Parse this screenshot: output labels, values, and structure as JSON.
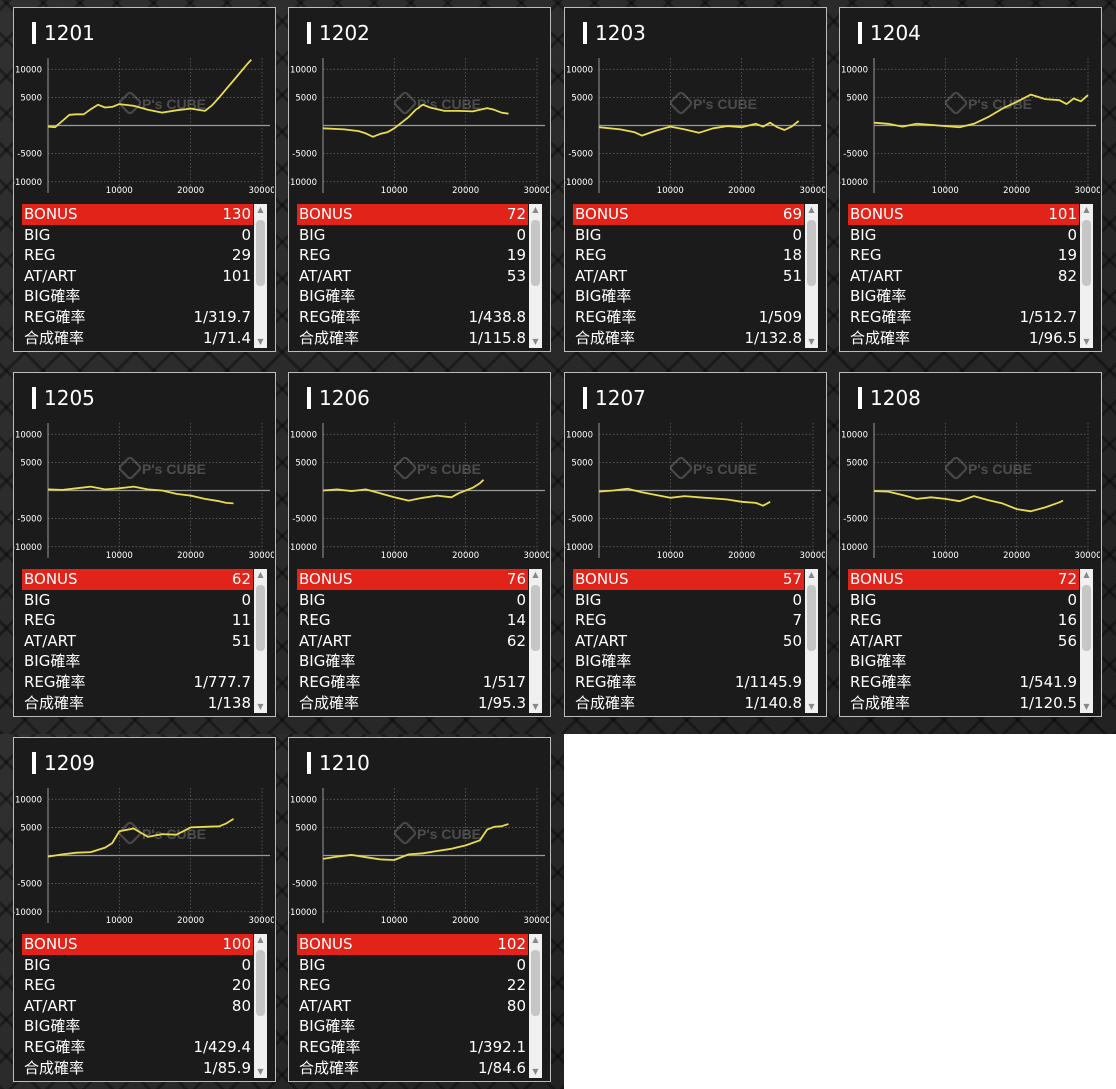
{
  "machines": [
    {
      "id": "1201",
      "bonus": "130",
      "big": "0",
      "reg": "29",
      "at": "101",
      "big_rate": "",
      "reg_rate": "1/319.7",
      "total_rate": "1/71.4",
      "series": [
        [
          0,
          -200
        ],
        [
          1000,
          -300
        ],
        [
          2000,
          800
        ],
        [
          3000,
          1900
        ],
        [
          4000,
          2000
        ],
        [
          5000,
          2000
        ],
        [
          6000,
          2900
        ],
        [
          7000,
          3700
        ],
        [
          8000,
          3200
        ],
        [
          9000,
          3300
        ],
        [
          10000,
          3800
        ],
        [
          12000,
          3500
        ],
        [
          14000,
          2800
        ],
        [
          16000,
          2300
        ],
        [
          18000,
          2700
        ],
        [
          20000,
          3000
        ],
        [
          22000,
          2600
        ],
        [
          23000,
          3600
        ],
        [
          24000,
          5000
        ],
        [
          25000,
          6500
        ],
        [
          26000,
          8000
        ],
        [
          27000,
          9500
        ],
        [
          28000,
          11000
        ],
        [
          28500,
          11700
        ]
      ]
    },
    {
      "id": "1202",
      "bonus": "72",
      "big": "0",
      "reg": "19",
      "at": "53",
      "big_rate": "",
      "reg_rate": "1/438.8",
      "total_rate": "1/115.8",
      "series": [
        [
          0,
          -500
        ],
        [
          3000,
          -700
        ],
        [
          5000,
          -1000
        ],
        [
          6000,
          -1400
        ],
        [
          7000,
          -2000
        ],
        [
          8000,
          -1500
        ],
        [
          9000,
          -1200
        ],
        [
          10000,
          -500
        ],
        [
          11000,
          500
        ],
        [
          12000,
          1500
        ],
        [
          13000,
          2800
        ],
        [
          14000,
          3700
        ],
        [
          15000,
          3200
        ],
        [
          17000,
          2600
        ],
        [
          19000,
          2600
        ],
        [
          21000,
          2500
        ],
        [
          23000,
          3100
        ],
        [
          24000,
          2800
        ],
        [
          25000,
          2300
        ],
        [
          26000,
          2100
        ]
      ]
    },
    {
      "id": "1203",
      "bonus": "69",
      "big": "0",
      "reg": "18",
      "at": "51",
      "big_rate": "",
      "reg_rate": "1/509",
      "total_rate": "1/132.8",
      "series": [
        [
          0,
          -300
        ],
        [
          3000,
          -700
        ],
        [
          5000,
          -1200
        ],
        [
          6000,
          -1800
        ],
        [
          8000,
          -900
        ],
        [
          10000,
          -200
        ],
        [
          12000,
          -700
        ],
        [
          14000,
          -1300
        ],
        [
          16000,
          -500
        ],
        [
          18000,
          -100
        ],
        [
          20000,
          -300
        ],
        [
          22000,
          300
        ],
        [
          23000,
          -200
        ],
        [
          24000,
          500
        ],
        [
          25000,
          -300
        ],
        [
          26000,
          -800
        ],
        [
          27000,
          -200
        ],
        [
          28000,
          800
        ]
      ]
    },
    {
      "id": "1204",
      "bonus": "101",
      "big": "0",
      "reg": "19",
      "at": "82",
      "big_rate": "",
      "reg_rate": "1/512.7",
      "total_rate": "1/96.5",
      "series": [
        [
          0,
          500
        ],
        [
          2000,
          300
        ],
        [
          4000,
          -200
        ],
        [
          6000,
          300
        ],
        [
          8000,
          100
        ],
        [
          10000,
          -100
        ],
        [
          12000,
          -300
        ],
        [
          14000,
          300
        ],
        [
          16000,
          1500
        ],
        [
          18000,
          3000
        ],
        [
          20000,
          4200
        ],
        [
          22000,
          5500
        ],
        [
          24000,
          4700
        ],
        [
          26000,
          4500
        ],
        [
          27000,
          3800
        ],
        [
          28000,
          4800
        ],
        [
          29000,
          4300
        ],
        [
          30000,
          5400
        ]
      ]
    },
    {
      "id": "1205",
      "bonus": "62",
      "big": "0",
      "reg": "11",
      "at": "51",
      "big_rate": "",
      "reg_rate": "1/777.7",
      "total_rate": "1/138",
      "series": [
        [
          0,
          200
        ],
        [
          2000,
          100
        ],
        [
          4000,
          400
        ],
        [
          6000,
          700
        ],
        [
          8000,
          200
        ],
        [
          10000,
          400
        ],
        [
          12000,
          700
        ],
        [
          14000,
          200
        ],
        [
          16000,
          0
        ],
        [
          18000,
          -600
        ],
        [
          20000,
          -900
        ],
        [
          22000,
          -1500
        ],
        [
          24000,
          -1900
        ],
        [
          25000,
          -2200
        ],
        [
          26000,
          -2300
        ]
      ]
    },
    {
      "id": "1206",
      "bonus": "76",
      "big": "0",
      "reg": "14",
      "at": "62",
      "big_rate": "",
      "reg_rate": "1/517",
      "total_rate": "1/95.3",
      "series": [
        [
          0,
          0
        ],
        [
          2000,
          200
        ],
        [
          4000,
          -100
        ],
        [
          6000,
          200
        ],
        [
          8000,
          -500
        ],
        [
          10000,
          -1200
        ],
        [
          12000,
          -1800
        ],
        [
          14000,
          -1300
        ],
        [
          16000,
          -900
        ],
        [
          18000,
          -1200
        ],
        [
          19000,
          -500
        ],
        [
          20000,
          0
        ],
        [
          21000,
          500
        ],
        [
          22000,
          1300
        ],
        [
          22500,
          1900
        ]
      ]
    },
    {
      "id": "1207",
      "bonus": "57",
      "big": "0",
      "reg": "7",
      "at": "50",
      "big_rate": "",
      "reg_rate": "1/1145.9",
      "total_rate": "1/140.8",
      "series": [
        [
          0,
          -200
        ],
        [
          2000,
          0
        ],
        [
          4000,
          300
        ],
        [
          6000,
          -300
        ],
        [
          8000,
          -800
        ],
        [
          10000,
          -1300
        ],
        [
          12000,
          -1000
        ],
        [
          14000,
          -1200
        ],
        [
          16000,
          -1400
        ],
        [
          18000,
          -1600
        ],
        [
          20000,
          -2000
        ],
        [
          22000,
          -2200
        ],
        [
          23000,
          -2700
        ],
        [
          24000,
          -2000
        ]
      ]
    },
    {
      "id": "1208",
      "bonus": "72",
      "big": "0",
      "reg": "16",
      "at": "56",
      "big_rate": "",
      "reg_rate": "1/541.9",
      "total_rate": "1/120.5",
      "series": [
        [
          0,
          -100
        ],
        [
          2000,
          -200
        ],
        [
          4000,
          -800
        ],
        [
          6000,
          -1500
        ],
        [
          8000,
          -1200
        ],
        [
          10000,
          -1500
        ],
        [
          12000,
          -1900
        ],
        [
          14000,
          -1000
        ],
        [
          16000,
          -1700
        ],
        [
          18000,
          -2300
        ],
        [
          20000,
          -3300
        ],
        [
          22000,
          -3700
        ],
        [
          24000,
          -3000
        ],
        [
          26000,
          -2100
        ],
        [
          26500,
          -1800
        ]
      ]
    },
    {
      "id": "1209",
      "bonus": "100",
      "big": "0",
      "reg": "20",
      "at": "80",
      "big_rate": "",
      "reg_rate": "1/429.4",
      "total_rate": "1/85.9",
      "series": [
        [
          0,
          -200
        ],
        [
          2000,
          200
        ],
        [
          4000,
          500
        ],
        [
          6000,
          600
        ],
        [
          8000,
          1400
        ],
        [
          9000,
          2200
        ],
        [
          10000,
          4300
        ],
        [
          12000,
          4800
        ],
        [
          14000,
          3300
        ],
        [
          16000,
          3800
        ],
        [
          18000,
          3700
        ],
        [
          20000,
          5000
        ],
        [
          22000,
          5100
        ],
        [
          24000,
          5200
        ],
        [
          25000,
          5700
        ],
        [
          26000,
          6500
        ]
      ]
    },
    {
      "id": "1210",
      "bonus": "102",
      "big": "0",
      "reg": "22",
      "at": "80",
      "big_rate": "",
      "reg_rate": "1/392.1",
      "total_rate": "1/84.6",
      "series": [
        [
          0,
          -600
        ],
        [
          2000,
          -200
        ],
        [
          4000,
          100
        ],
        [
          6000,
          -300
        ],
        [
          8000,
          -700
        ],
        [
          10000,
          -800
        ],
        [
          12000,
          200
        ],
        [
          14000,
          400
        ],
        [
          16000,
          800
        ],
        [
          18000,
          1200
        ],
        [
          20000,
          1800
        ],
        [
          22000,
          2700
        ],
        [
          23000,
          4600
        ],
        [
          24000,
          5100
        ],
        [
          25000,
          5200
        ],
        [
          26000,
          5600
        ]
      ]
    }
  ],
  "labels": {
    "bonus": "BONUS",
    "big": "BIG",
    "reg": "REG",
    "at": "AT/ART",
    "big_rate": "BIG確率",
    "reg_rate": "REG確率",
    "total_rate": "合成確率"
  },
  "chart": {
    "y_ticks": [
      "10000",
      "5000",
      "-5000",
      "-10000"
    ],
    "x_ticks": [
      "10000",
      "20000",
      "30000"
    ],
    "xlim": [
      0,
      30000
    ],
    "ylim": [
      -12000,
      12000
    ],
    "line_color": "#e8dd4e",
    "accent_color": "#e2231a",
    "watermark": "P's CUBE"
  }
}
